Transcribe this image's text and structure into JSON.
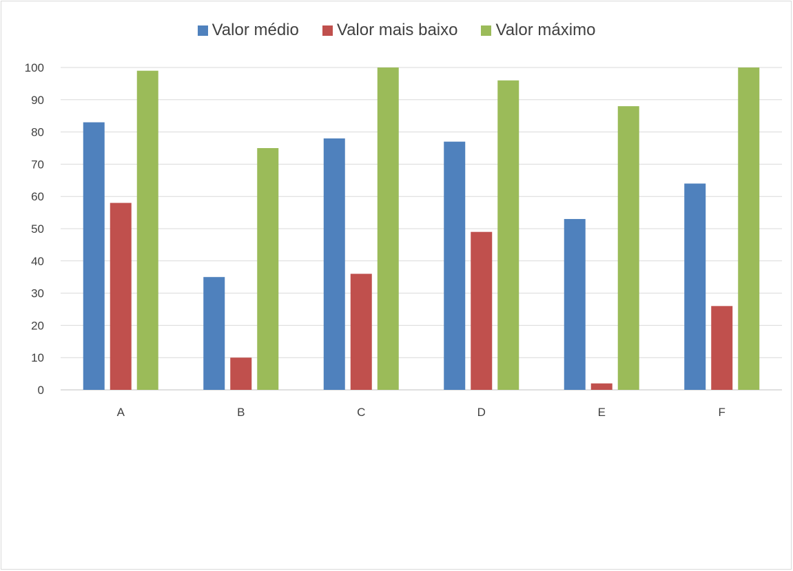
{
  "chart_data": {
    "type": "bar",
    "title": "",
    "xlabel": "",
    "ylabel": "",
    "categories": [
      "A",
      "B",
      "C",
      "D",
      "E",
      "F"
    ],
    "series": [
      {
        "name": "Valor médio",
        "color": "#4f81bd",
        "values": [
          83,
          35,
          78,
          77,
          53,
          64
        ]
      },
      {
        "name": "Valor mais baixo",
        "color": "#c0504d",
        "values": [
          58,
          10,
          36,
          49,
          2,
          26
        ]
      },
      {
        "name": "Valor máximo",
        "color": "#9bbb59",
        "values": [
          99,
          75,
          100,
          96,
          88,
          100
        ]
      }
    ],
    "ylim": [
      0,
      100
    ],
    "yticks": [
      0,
      10,
      20,
      30,
      40,
      50,
      60,
      70,
      80,
      90,
      100
    ],
    "grid": true,
    "legend_position": "top"
  }
}
